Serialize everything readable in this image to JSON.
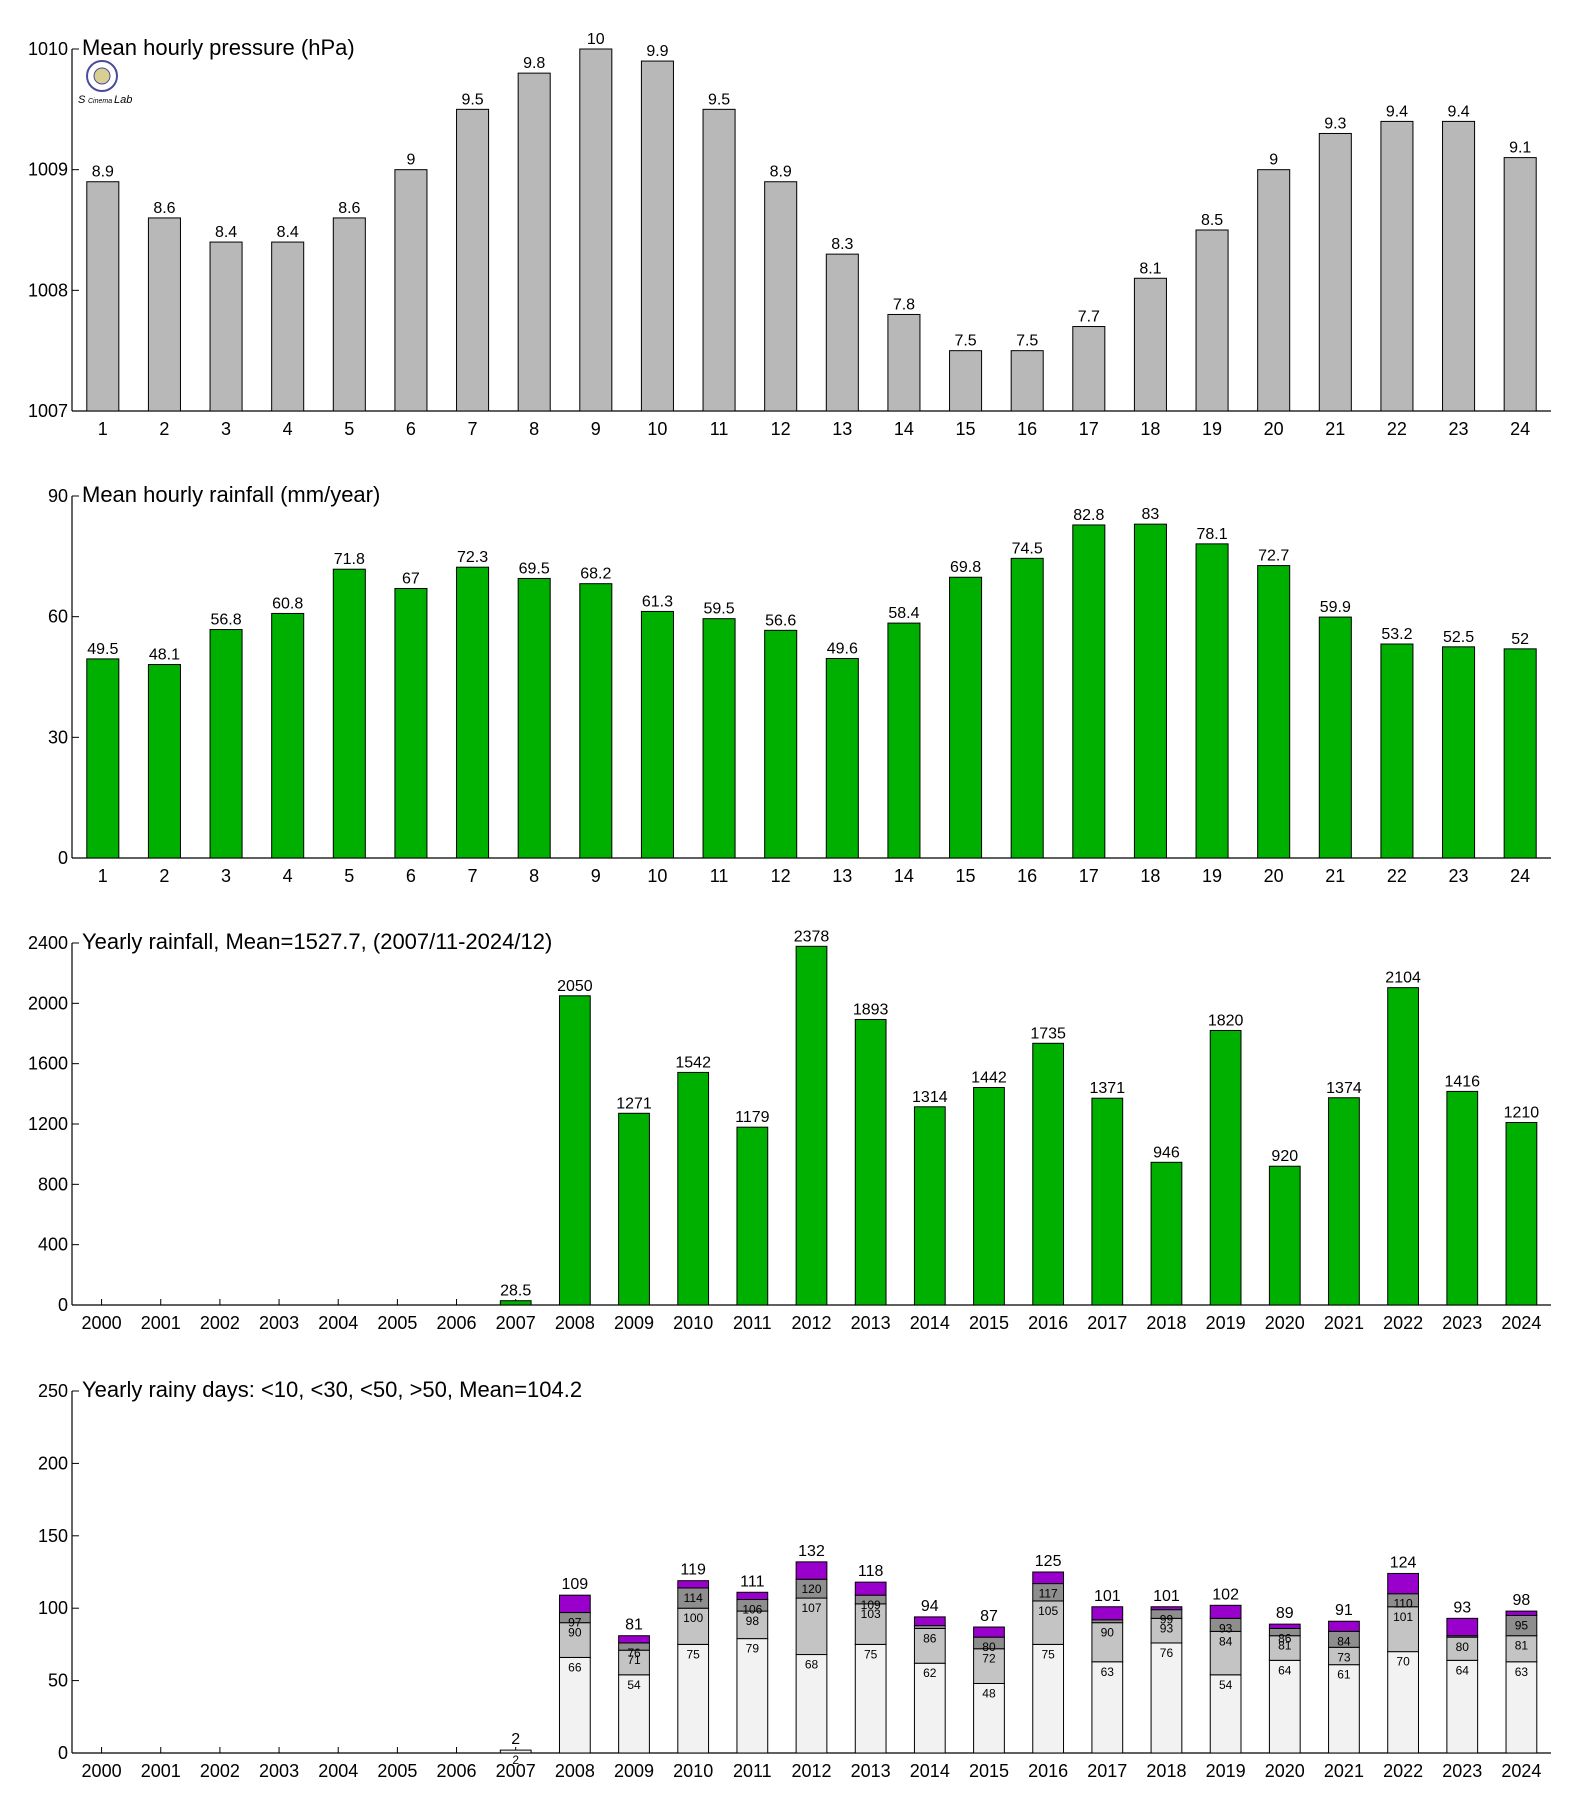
{
  "logo": {
    "text_a": "S",
    "text_b": "Cinema",
    "text_c": "Lab",
    "colors": [
      "#2030c0",
      "#e03020",
      "#20a020"
    ]
  },
  "chart_data": [
    {
      "id": "pressure",
      "type": "bar",
      "title": "Mean hourly pressure (hPa)",
      "categories": [
        "1",
        "2",
        "3",
        "4",
        "5",
        "6",
        "7",
        "8",
        "9",
        "10",
        "11",
        "12",
        "13",
        "14",
        "15",
        "16",
        "17",
        "18",
        "19",
        "20",
        "21",
        "22",
        "23",
        "24"
      ],
      "values": [
        1008.9,
        1008.6,
        1008.4,
        1008.4,
        1008.6,
        1009,
        1009.5,
        1009.8,
        1010,
        1009.9,
        1009.5,
        1008.9,
        1008.3,
        1007.8,
        1007.5,
        1007.5,
        1007.7,
        1008.1,
        1008.5,
        1009,
        1009.3,
        1009.4,
        1009.4,
        1009.1
      ],
      "labels": [
        "8.9",
        "8.6",
        "8.4",
        "8.4",
        "8.6",
        "9",
        "9.5",
        "9.8",
        "10",
        "9.9",
        "9.5",
        "8.9",
        "8.3",
        "7.8",
        "7.5",
        "7.5",
        "7.7",
        "8.1",
        "8.5",
        "9",
        "9.3",
        "9.4",
        "9.4",
        "9.1"
      ],
      "ylim": [
        1007,
        1010
      ],
      "yticks": [
        1007,
        1008,
        1009,
        1010
      ],
      "color": "#b8b8b8"
    },
    {
      "id": "hourly_rain",
      "type": "bar",
      "title": "Mean hourly rainfall (mm/year)",
      "categories": [
        "1",
        "2",
        "3",
        "4",
        "5",
        "6",
        "7",
        "8",
        "9",
        "10",
        "11",
        "12",
        "13",
        "14",
        "15",
        "16",
        "17",
        "18",
        "19",
        "20",
        "21",
        "22",
        "23",
        "24"
      ],
      "values": [
        49.5,
        48.1,
        56.8,
        60.8,
        71.8,
        67,
        72.3,
        69.5,
        68.2,
        61.3,
        59.5,
        56.6,
        49.6,
        58.4,
        69.8,
        74.5,
        82.8,
        83,
        78.1,
        72.7,
        59.9,
        53.2,
        52.5,
        52
      ],
      "labels": [
        "49.5",
        "48.1",
        "56.8",
        "60.8",
        "71.8",
        "67",
        "72.3",
        "69.5",
        "68.2",
        "61.3",
        "59.5",
        "56.6",
        "49.6",
        "58.4",
        "69.8",
        "74.5",
        "82.8",
        "83",
        "78.1",
        "72.7",
        "59.9",
        "53.2",
        "52.5",
        "52"
      ],
      "ylim": [
        0,
        90
      ],
      "yticks": [
        0,
        30,
        60,
        90
      ],
      "color": "#00b000"
    },
    {
      "id": "yearly_rain",
      "type": "bar",
      "title": "Yearly rainfall, Mean=1527.7, (2007/11-2024/12)",
      "categories": [
        "2000",
        "2001",
        "2002",
        "2003",
        "2004",
        "2005",
        "2006",
        "2007",
        "2008",
        "2009",
        "2010",
        "2011",
        "2012",
        "2013",
        "2014",
        "2015",
        "2016",
        "2017",
        "2018",
        "2019",
        "2020",
        "2021",
        "2022",
        "2023",
        "2024"
      ],
      "values": [
        0,
        0,
        0,
        0,
        0,
        0,
        0,
        28.5,
        2050,
        1271,
        1542,
        1179,
        2378,
        1893,
        1314,
        1442,
        1735,
        1371,
        946,
        1820,
        920,
        1374,
        2104,
        1416,
        1210
      ],
      "labels": [
        "",
        "",
        "",
        "",
        "",
        "",
        "",
        "28.5",
        "2050",
        "1271",
        "1542",
        "1179",
        "2378",
        "1893",
        "1314",
        "1442",
        "1735",
        "1371",
        "946",
        "1820",
        "920",
        "1374",
        "2104",
        "1416",
        "1210"
      ],
      "ylim": [
        0,
        2400
      ],
      "yticks": [
        0,
        400,
        800,
        1200,
        1600,
        2000,
        2400
      ],
      "color": "#00b000"
    },
    {
      "id": "rainy_days",
      "type": "bar",
      "stacked": true,
      "title": "Yearly rainy days: <10, <30, <50, >50, Mean=104.2",
      "categories": [
        "2000",
        "2001",
        "2002",
        "2003",
        "2004",
        "2005",
        "2006",
        "2007",
        "2008",
        "2009",
        "2010",
        "2011",
        "2012",
        "2013",
        "2014",
        "2015",
        "2016",
        "2017",
        "2018",
        "2019",
        "2020",
        "2021",
        "2022",
        "2023",
        "2024"
      ],
      "cumulative": {
        "lt10": [
          0,
          0,
          0,
          0,
          0,
          0,
          0,
          2,
          66,
          54,
          75,
          79,
          68,
          75,
          62,
          48,
          75,
          63,
          76,
          54,
          64,
          61,
          70,
          64,
          63
        ],
        "lt30": [
          0,
          0,
          0,
          0,
          0,
          0,
          0,
          2,
          90,
          71,
          100,
          98,
          107,
          103,
          86,
          72,
          105,
          90,
          93,
          84,
          81,
          73,
          101,
          80,
          81
        ],
        "lt50": [
          0,
          0,
          0,
          0,
          0,
          0,
          0,
          2,
          97,
          76,
          114,
          106,
          120,
          109,
          88,
          80,
          117,
          92,
          99,
          93,
          86,
          84,
          110,
          81,
          95
        ],
        "total": [
          0,
          0,
          0,
          0,
          0,
          0,
          0,
          2,
          109,
          81,
          119,
          111,
          132,
          118,
          94,
          87,
          125,
          101,
          101,
          102,
          89,
          91,
          124,
          93,
          98
        ]
      },
      "segment_labels": {
        "lt10": [
          "",
          "",
          "",
          "",
          "",
          "",
          "",
          "2",
          "66",
          "54",
          "75",
          "79",
          "68",
          "75",
          "62",
          "48",
          "75",
          "63",
          "76",
          "54",
          "64",
          "61",
          "70",
          "64",
          "63"
        ],
        "lt30": [
          "",
          "",
          "",
          "",
          "",
          "",
          "",
          "",
          "90",
          "71",
          "100",
          "98",
          "107",
          "103",
          "86",
          "72",
          "105",
          "90",
          "93",
          "84",
          "81",
          "73",
          "101",
          "80",
          "81"
        ],
        "lt50": [
          "",
          "",
          "",
          "",
          "",
          "",
          "",
          "",
          "97",
          "76",
          "114",
          "106",
          "120",
          "109",
          "",
          "80",
          "117",
          "",
          "99",
          "93",
          "86",
          "84",
          "110",
          "",
          "95"
        ]
      },
      "total_labels": [
        "",
        "",
        "",
        "",
        "",
        "",
        "",
        "2",
        "109",
        "81",
        "119",
        "111",
        "132",
        "118",
        "94",
        "87",
        "125",
        "101",
        "101",
        "102",
        "89",
        "91",
        "124",
        "93",
        "98"
      ],
      "ylim": [
        0,
        250
      ],
      "yticks": [
        0,
        50,
        100,
        150,
        200,
        250
      ],
      "colors": [
        "#f2f2f2",
        "#c4c4c4",
        "#8e8e8e",
        "#9900cc"
      ]
    }
  ]
}
